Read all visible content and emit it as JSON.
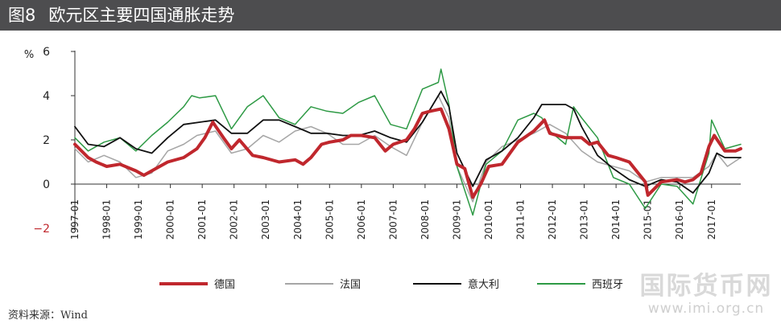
{
  "header": {
    "figure_label": "图8",
    "title": "欧元区主要四国通胀走势"
  },
  "source": "资料来源：Wind",
  "watermark": {
    "text": "国际货币网",
    "url": "www.imi.org.cn"
  },
  "colors": {
    "germany": "#c0272d",
    "france": "#a6a6a6",
    "italy": "#111111",
    "spain": "#2e9a45",
    "negative_tick": "#c0272d"
  },
  "chart_data": {
    "type": "line",
    "title": "欧元区主要四国通胀走势",
    "ylabel": "%",
    "xlabel": "",
    "ylim": [
      -2,
      6
    ],
    "yticks": [
      -2,
      0,
      2,
      4,
      6
    ],
    "x_ticks": [
      "1997-01",
      "1998-01",
      "1999-01",
      "2000-01",
      "2001-01",
      "2002-01",
      "2003-01",
      "2004-01",
      "2005-01",
      "2006-01",
      "2007-01",
      "2008-01",
      "2009-01",
      "2010-01",
      "2011-01",
      "2012-01",
      "2013-01",
      "2014-01",
      "2015-01",
      "2016-01",
      "2017-01"
    ],
    "x_range": [
      "1997-01",
      "2017-12"
    ],
    "legend_position": "bottom",
    "grid": false,
    "series": [
      {
        "name": "德国",
        "color": "#c0272d",
        "width": 4,
        "points": [
          [
            "1997-01",
            1.8
          ],
          [
            "1997-06",
            1.2
          ],
          [
            "1997-09",
            1.0
          ],
          [
            "1998-01",
            0.8
          ],
          [
            "1998-06",
            0.9
          ],
          [
            "1998-12",
            0.6
          ],
          [
            "1999-03",
            0.4
          ],
          [
            "1999-06",
            0.6
          ],
          [
            "1999-12",
            1.0
          ],
          [
            "2000-06",
            1.2
          ],
          [
            "2000-11",
            1.6
          ],
          [
            "2001-02",
            2.1
          ],
          [
            "2001-05",
            2.8
          ],
          [
            "2001-09",
            2.1
          ],
          [
            "2001-12",
            1.6
          ],
          [
            "2002-03",
            2.0
          ],
          [
            "2002-08",
            1.3
          ],
          [
            "2002-12",
            1.2
          ],
          [
            "2003-06",
            1.0
          ],
          [
            "2003-12",
            1.1
          ],
          [
            "2004-03",
            0.9
          ],
          [
            "2004-06",
            1.2
          ],
          [
            "2004-10",
            1.8
          ],
          [
            "2005-01",
            1.9
          ],
          [
            "2005-06",
            2.0
          ],
          [
            "2005-09",
            2.2
          ],
          [
            "2006-01",
            2.2
          ],
          [
            "2006-06",
            2.1
          ],
          [
            "2006-10",
            1.5
          ],
          [
            "2007-01",
            1.8
          ],
          [
            "2007-06",
            2.0
          ],
          [
            "2007-09",
            2.5
          ],
          [
            "2007-12",
            3.2
          ],
          [
            "2008-03",
            3.3
          ],
          [
            "2008-07",
            3.4
          ],
          [
            "2008-10",
            2.5
          ],
          [
            "2009-01",
            0.9
          ],
          [
            "2009-04",
            0.7
          ],
          [
            "2009-07",
            -0.6
          ],
          [
            "2009-10",
            0.0
          ],
          [
            "2010-01",
            0.8
          ],
          [
            "2010-06",
            0.9
          ],
          [
            "2010-12",
            1.9
          ],
          [
            "2011-06",
            2.4
          ],
          [
            "2011-10",
            2.9
          ],
          [
            "2011-12",
            2.3
          ],
          [
            "2012-06",
            2.1
          ],
          [
            "2012-12",
            2.1
          ],
          [
            "2013-03",
            1.8
          ],
          [
            "2013-06",
            1.9
          ],
          [
            "2013-10",
            1.3
          ],
          [
            "2014-01",
            1.2
          ],
          [
            "2014-06",
            1.0
          ],
          [
            "2014-12",
            0.1
          ],
          [
            "2015-01",
            -0.5
          ],
          [
            "2015-06",
            0.1
          ],
          [
            "2015-12",
            0.2
          ],
          [
            "2016-03",
            0.1
          ],
          [
            "2016-06",
            0.2
          ],
          [
            "2016-09",
            0.5
          ],
          [
            "2016-12",
            1.7
          ],
          [
            "2017-02",
            2.2
          ],
          [
            "2017-06",
            1.5
          ],
          [
            "2017-10",
            1.5
          ],
          [
            "2017-12",
            1.6
          ]
        ]
      },
      {
        "name": "法国",
        "color": "#a6a6a6",
        "width": 1.5,
        "points": [
          [
            "1997-01",
            1.6
          ],
          [
            "1997-06",
            1.0
          ],
          [
            "1997-12",
            1.3
          ],
          [
            "1998-06",
            1.0
          ],
          [
            "1998-12",
            0.3
          ],
          [
            "1999-06",
            0.5
          ],
          [
            "1999-12",
            1.5
          ],
          [
            "2000-06",
            1.8
          ],
          [
            "2000-11",
            2.2
          ],
          [
            "2001-06",
            2.4
          ],
          [
            "2001-12",
            1.4
          ],
          [
            "2002-06",
            1.6
          ],
          [
            "2002-12",
            2.2
          ],
          [
            "2003-06",
            1.9
          ],
          [
            "2003-12",
            2.4
          ],
          [
            "2004-06",
            2.6
          ],
          [
            "2004-12",
            2.3
          ],
          [
            "2005-06",
            1.8
          ],
          [
            "2005-12",
            1.8
          ],
          [
            "2006-06",
            2.2
          ],
          [
            "2006-12",
            1.7
          ],
          [
            "2007-06",
            1.3
          ],
          [
            "2007-12",
            2.8
          ],
          [
            "2008-06",
            4.0
          ],
          [
            "2008-10",
            3.0
          ],
          [
            "2009-01",
            0.8
          ],
          [
            "2009-07",
            -0.8
          ],
          [
            "2009-12",
            1.0
          ],
          [
            "2010-06",
            1.7
          ],
          [
            "2010-12",
            2.0
          ],
          [
            "2011-06",
            2.3
          ],
          [
            "2011-12",
            2.7
          ],
          [
            "2012-06",
            2.3
          ],
          [
            "2012-12",
            1.5
          ],
          [
            "2013-06",
            1.0
          ],
          [
            "2013-12",
            0.8
          ],
          [
            "2014-06",
            0.6
          ],
          [
            "2014-12",
            0.1
          ],
          [
            "2015-06",
            0.3
          ],
          [
            "2015-12",
            0.3
          ],
          [
            "2016-06",
            0.3
          ],
          [
            "2016-12",
            0.8
          ],
          [
            "2017-03",
            1.4
          ],
          [
            "2017-07",
            0.8
          ],
          [
            "2017-12",
            1.2
          ]
        ]
      },
      {
        "name": "意大利",
        "color": "#111111",
        "width": 1.8,
        "points": [
          [
            "1997-01",
            2.6
          ],
          [
            "1997-06",
            1.8
          ],
          [
            "1997-12",
            1.7
          ],
          [
            "1998-06",
            2.1
          ],
          [
            "1998-12",
            1.6
          ],
          [
            "1999-06",
            1.4
          ],
          [
            "1999-12",
            2.1
          ],
          [
            "2000-06",
            2.7
          ],
          [
            "2000-12",
            2.8
          ],
          [
            "2001-06",
            2.9
          ],
          [
            "2001-12",
            2.3
          ],
          [
            "2002-06",
            2.3
          ],
          [
            "2002-12",
            2.9
          ],
          [
            "2003-06",
            2.9
          ],
          [
            "2003-12",
            2.6
          ],
          [
            "2004-06",
            2.3
          ],
          [
            "2004-12",
            2.3
          ],
          [
            "2005-06",
            2.2
          ],
          [
            "2005-12",
            2.2
          ],
          [
            "2006-06",
            2.4
          ],
          [
            "2006-12",
            2.1
          ],
          [
            "2007-06",
            1.9
          ],
          [
            "2007-12",
            2.8
          ],
          [
            "2008-06",
            4.0
          ],
          [
            "2008-07",
            4.2
          ],
          [
            "2008-10",
            3.5
          ],
          [
            "2009-01",
            1.4
          ],
          [
            "2009-07",
            -0.1
          ],
          [
            "2009-12",
            1.1
          ],
          [
            "2010-06",
            1.5
          ],
          [
            "2010-12",
            2.1
          ],
          [
            "2011-06",
            3.0
          ],
          [
            "2011-09",
            3.6
          ],
          [
            "2012-06",
            3.6
          ],
          [
            "2012-09",
            3.4
          ],
          [
            "2012-12",
            2.6
          ],
          [
            "2013-06",
            1.3
          ],
          [
            "2013-12",
            0.7
          ],
          [
            "2014-06",
            0.2
          ],
          [
            "2014-12",
            -0.1
          ],
          [
            "2015-06",
            0.2
          ],
          [
            "2015-12",
            0.1
          ],
          [
            "2016-06",
            -0.4
          ],
          [
            "2016-12",
            0.5
          ],
          [
            "2017-03",
            1.4
          ],
          [
            "2017-06",
            1.2
          ],
          [
            "2017-12",
            1.2
          ]
        ]
      },
      {
        "name": "西班牙",
        "color": "#2e9a45",
        "width": 1.5,
        "points": [
          [
            "1997-01",
            2.1
          ],
          [
            "1997-06",
            1.5
          ],
          [
            "1997-12",
            1.9
          ],
          [
            "1998-06",
            2.1
          ],
          [
            "1998-12",
            1.5
          ],
          [
            "1999-06",
            2.2
          ],
          [
            "1999-12",
            2.8
          ],
          [
            "2000-06",
            3.5
          ],
          [
            "2000-09",
            4.0
          ],
          [
            "2000-12",
            3.9
          ],
          [
            "2001-06",
            4.0
          ],
          [
            "2001-12",
            2.5
          ],
          [
            "2002-06",
            3.5
          ],
          [
            "2002-12",
            4.0
          ],
          [
            "2003-06",
            3.0
          ],
          [
            "2003-12",
            2.7
          ],
          [
            "2004-06",
            3.5
          ],
          [
            "2004-12",
            3.3
          ],
          [
            "2005-06",
            3.2
          ],
          [
            "2005-12",
            3.7
          ],
          [
            "2006-06",
            4.0
          ],
          [
            "2006-12",
            2.7
          ],
          [
            "2007-06",
            2.5
          ],
          [
            "2007-12",
            4.3
          ],
          [
            "2008-06",
            4.6
          ],
          [
            "2008-07",
            5.2
          ],
          [
            "2008-10",
            3.6
          ],
          [
            "2009-01",
            0.8
          ],
          [
            "2009-07",
            -1.4
          ],
          [
            "2009-12",
            0.9
          ],
          [
            "2010-06",
            1.5
          ],
          [
            "2010-12",
            2.9
          ],
          [
            "2011-06",
            3.2
          ],
          [
            "2011-09",
            3.0
          ],
          [
            "2011-12",
            2.4
          ],
          [
            "2012-06",
            1.8
          ],
          [
            "2012-09",
            3.5
          ],
          [
            "2012-12",
            3.0
          ],
          [
            "2013-06",
            2.1
          ],
          [
            "2013-12",
            0.3
          ],
          [
            "2014-06",
            0.0
          ],
          [
            "2014-12",
            -1.1
          ],
          [
            "2015-06",
            0.0
          ],
          [
            "2015-12",
            -0.1
          ],
          [
            "2016-06",
            -0.9
          ],
          [
            "2016-12",
            1.4
          ],
          [
            "2017-01",
            2.9
          ],
          [
            "2017-06",
            1.6
          ],
          [
            "2017-12",
            1.8
          ]
        ]
      }
    ]
  }
}
